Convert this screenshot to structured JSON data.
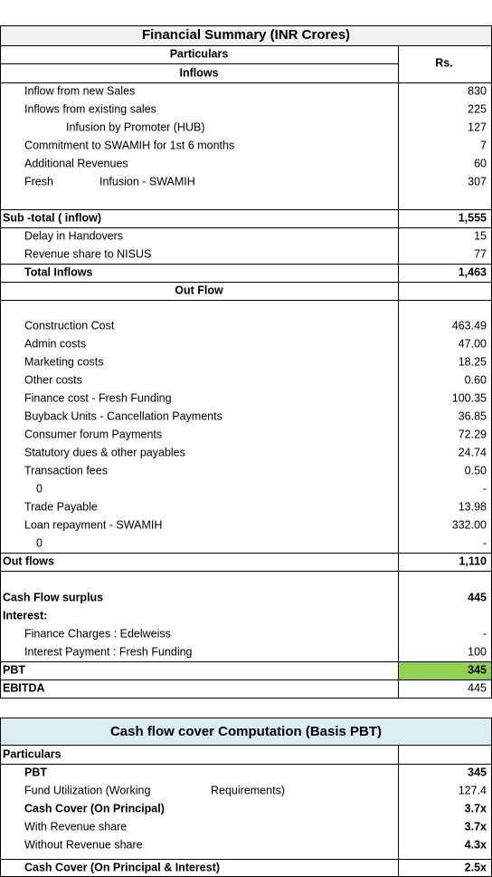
{
  "table1": {
    "title": "Financial Summary (INR Crores)",
    "particulars_header": "Particulars",
    "amount_header": "Rs.",
    "inflows_header": "Inflows",
    "outflow_header": "Out Flow",
    "rows": [
      {
        "label": "Inflow from new Sales",
        "value": "830"
      },
      {
        "label": "Inflows from existing sales",
        "value": "225"
      },
      {
        "label": "Infusion by Promoter (HUB)",
        "value": "127"
      },
      {
        "label": "Commitment to SWAMIH for 1st 6 months",
        "value": "7"
      },
      {
        "label": "Additional Revenues",
        "value": "60"
      },
      {
        "label": "Fresh",
        "label2": "Infusion - SWAMIH",
        "value": "307"
      },
      {
        "label": "Sub -total ( inflow)",
        "value": "1,555"
      },
      {
        "label": "Delay in Handovers",
        "value": "15"
      },
      {
        "label": "Revenue share to NISUS",
        "value": "77"
      },
      {
        "label": "Total Inflows",
        "value": "1,463"
      },
      {
        "label": "Construction Cost",
        "value": "463.49"
      },
      {
        "label": "Admin costs",
        "value": "47.00"
      },
      {
        "label": "Marketing costs",
        "value": "18.25"
      },
      {
        "label": "Other costs",
        "value": "0.60"
      },
      {
        "label": "Finance cost - Fresh Funding",
        "value": "100.35"
      },
      {
        "label": "Buyback Units - Cancellation Payments",
        "value": "36.85"
      },
      {
        "label": "Consumer forum Payments",
        "value": "72.29"
      },
      {
        "label": "Statutory dues & other payables",
        "value": "24.74"
      },
      {
        "label": "Transaction fees",
        "value": "0.50"
      },
      {
        "label": "0",
        "value": "-"
      },
      {
        "label": "Trade Payable",
        "value": "13.98"
      },
      {
        "label": "Loan  repayment - SWAMIH",
        "value": "332.00"
      },
      {
        "label": "0",
        "value": "-"
      },
      {
        "label": "Out flows",
        "value": "1,110"
      },
      {
        "label": "Cash Flow surplus",
        "value": "445"
      },
      {
        "label": "Interest:"
      },
      {
        "label": "Finance Charges : Edelweiss",
        "value": "-"
      },
      {
        "label": "Interest Payment : Fresh Funding",
        "value": "100"
      },
      {
        "label": "PBT",
        "value": "345"
      },
      {
        "label": "EBITDA",
        "value": "445"
      }
    ]
  },
  "table2": {
    "title": "Cash flow cover Computation (Basis PBT)",
    "rows": [
      {
        "label": "Particulars"
      },
      {
        "label": "PBT",
        "value": "345"
      },
      {
        "label": "Fund Utilization (Working",
        "label2": "Requirements)",
        "value": "127.4"
      },
      {
        "label": "Cash Cover (On Principal)",
        "value": "3.7x"
      },
      {
        "label": "With Revenue share",
        "value": "3.7x"
      },
      {
        "label": "Without Revenue share",
        "value": "4.3x"
      },
      {
        "label": "Cash Cover (On Principal & Interest)",
        "value": "2.5x"
      }
    ]
  }
}
